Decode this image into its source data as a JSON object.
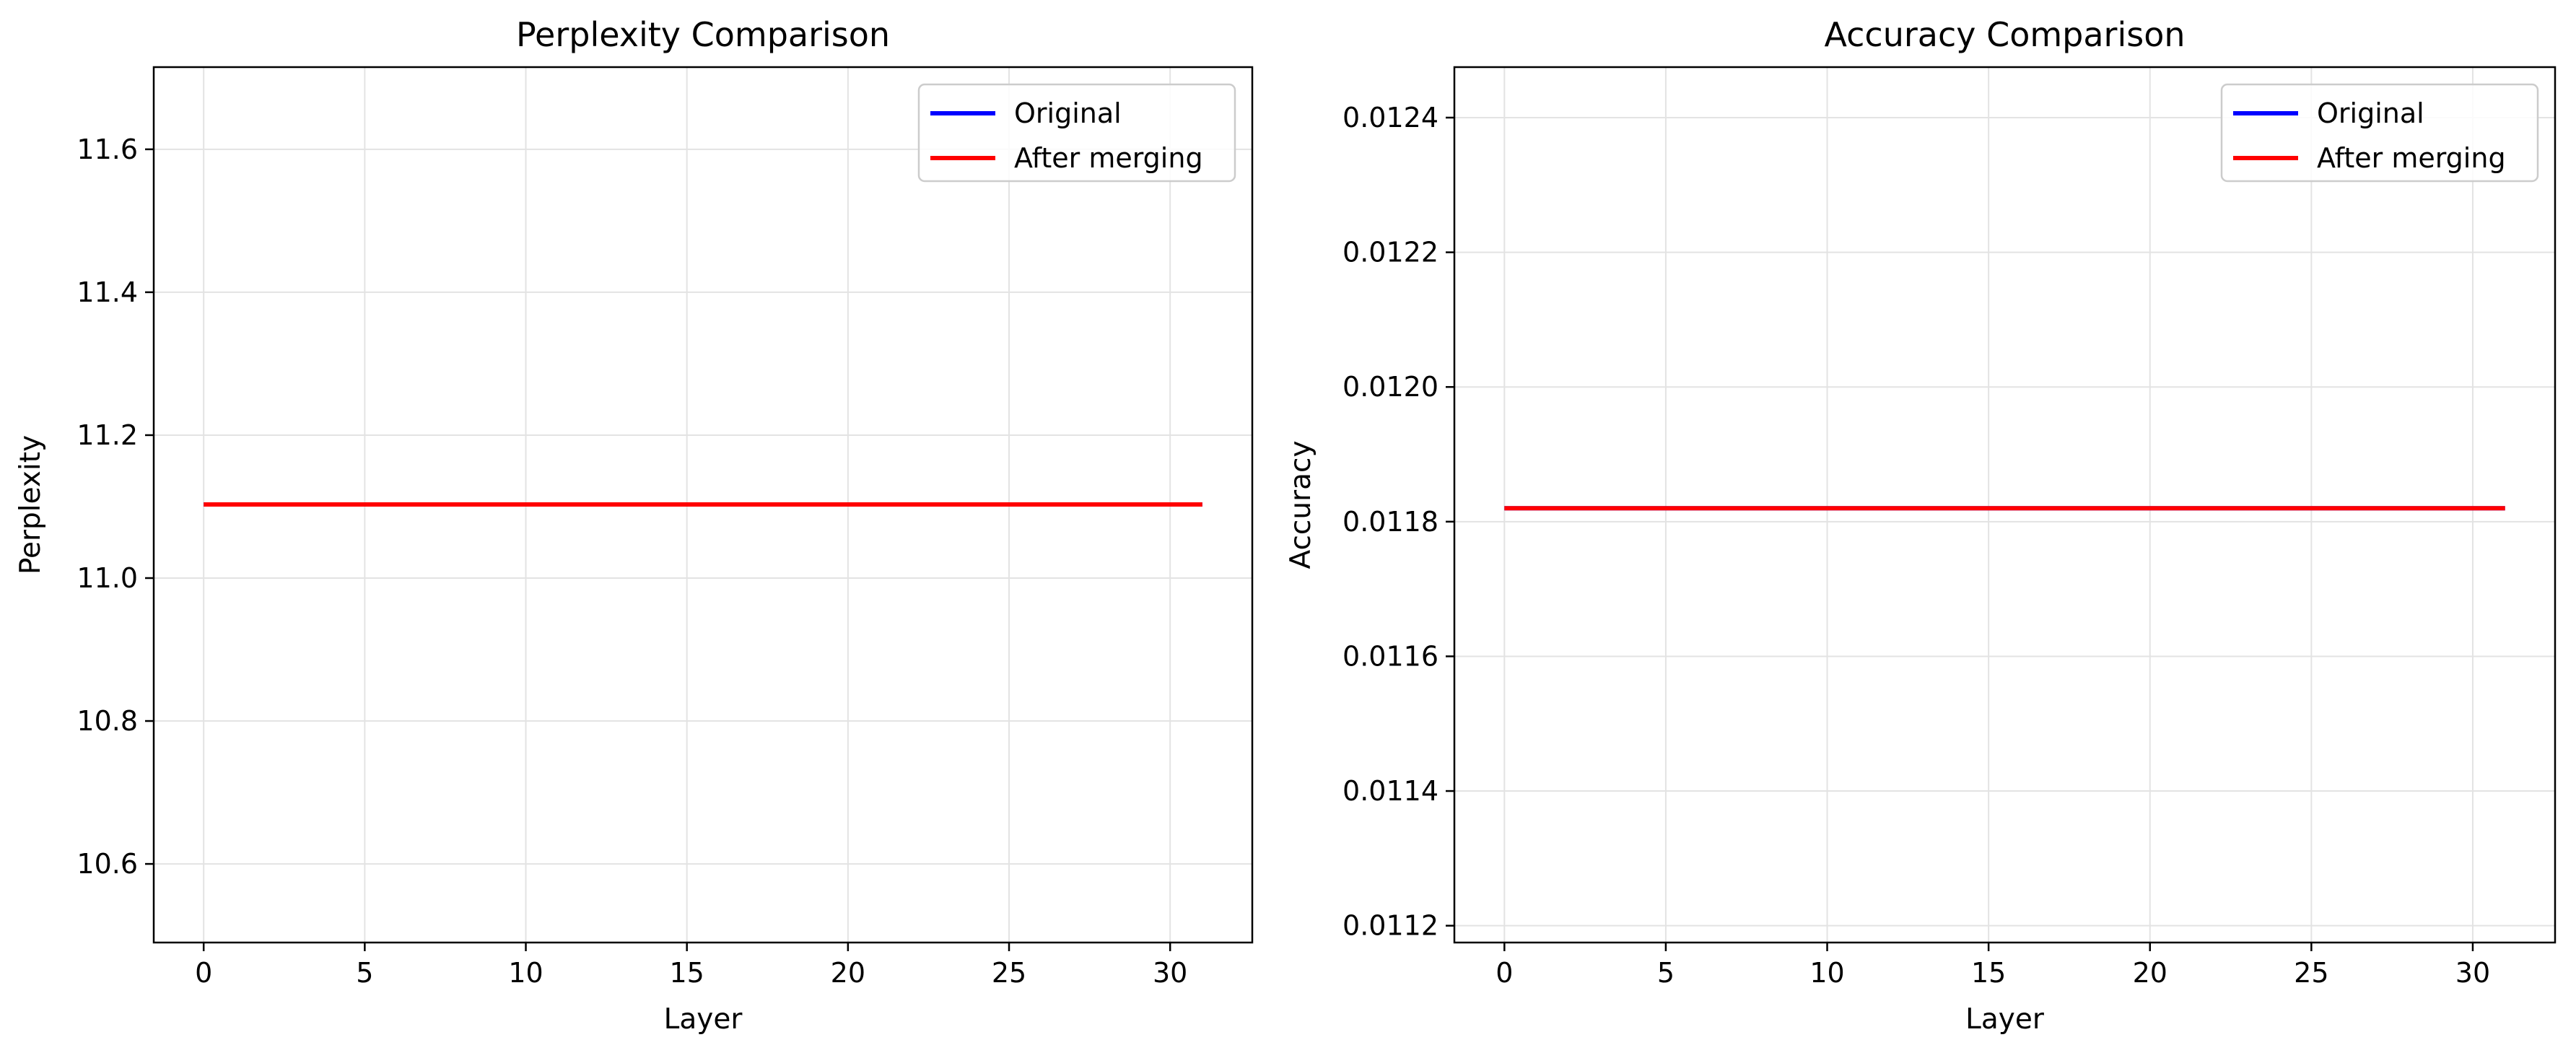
{
  "chart_data": [
    {
      "type": "line",
      "title": "Perplexity Comparison",
      "xlabel": "Layer",
      "ylabel": "Perplexity",
      "xlim": [
        -1.55,
        32.55
      ],
      "ylim": [
        10.49,
        11.715
      ],
      "xticks": [
        0,
        5,
        10,
        15,
        20,
        25,
        30
      ],
      "yticks": [
        10.6,
        10.8,
        11.0,
        11.2,
        11.4,
        11.6
      ],
      "ytick_labels": [
        "10.6",
        "10.8",
        "11.0",
        "11.2",
        "11.4",
        "11.6"
      ],
      "grid": true,
      "legend_position": "top-right",
      "series": [
        {
          "name": "Original",
          "color": "#0000ff",
          "x": [
            0,
            31
          ],
          "y": [
            11.103,
            11.103
          ]
        },
        {
          "name": "After merging",
          "color": "#ff0000",
          "x": [
            0,
            31
          ],
          "y": [
            11.103,
            11.103
          ]
        }
      ]
    },
    {
      "type": "line",
      "title": "Accuracy Comparison",
      "xlabel": "Layer",
      "ylabel": "Accuracy",
      "xlim": [
        -1.55,
        32.55
      ],
      "ylim": [
        0.011175,
        0.012475
      ],
      "xticks": [
        0,
        5,
        10,
        15,
        20,
        25,
        30
      ],
      "yticks": [
        0.0112,
        0.0114,
        0.0116,
        0.0118,
        0.012,
        0.0122,
        0.0124
      ],
      "ytick_labels": [
        "0.0112",
        "0.0114",
        "0.0116",
        "0.0118",
        "0.0120",
        "0.0122",
        "0.0124"
      ],
      "grid": true,
      "legend_position": "top-right",
      "series": [
        {
          "name": "Original",
          "color": "#0000ff",
          "x": [
            0,
            31
          ],
          "y": [
            0.01182,
            0.01182
          ]
        },
        {
          "name": "After merging",
          "color": "#ff0000",
          "x": [
            0,
            31
          ],
          "y": [
            0.01182,
            0.01182
          ]
        }
      ]
    }
  ]
}
